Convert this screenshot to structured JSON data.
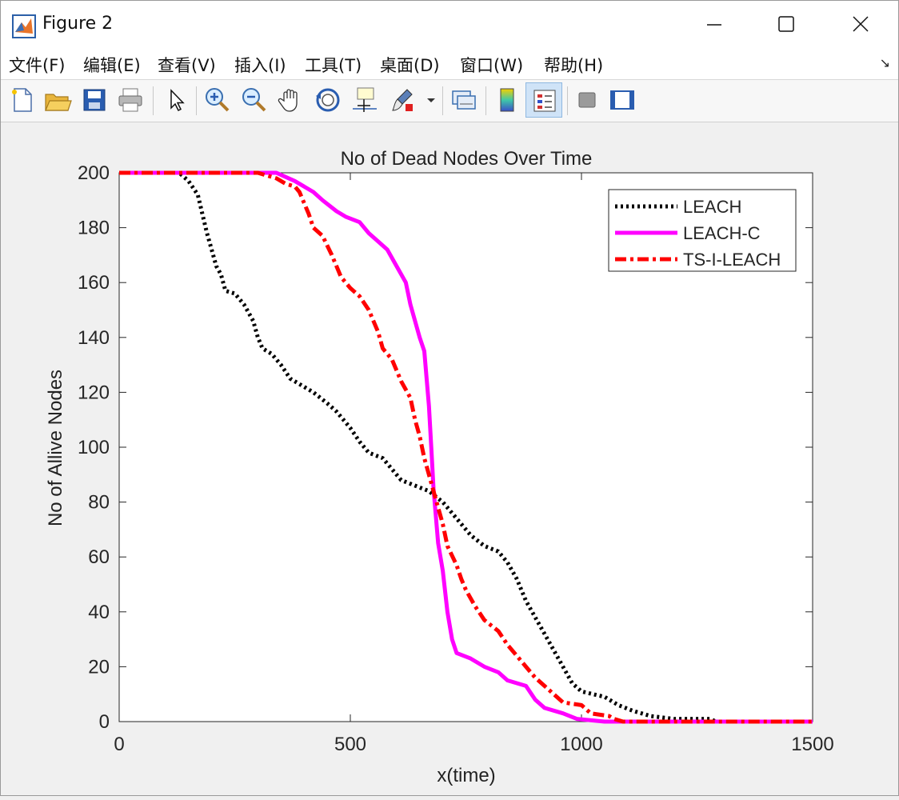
{
  "window": {
    "title": "Figure 2"
  },
  "menu": {
    "items": [
      "文件(F)",
      "编辑(E)",
      "查看(V)",
      "插入(I)",
      "工具(T)",
      "桌面(D)",
      "窗口(W)",
      "帮助(H)"
    ]
  },
  "toolbar": {
    "icons": [
      "new-figure-icon",
      "open-file-icon",
      "save-icon",
      "print-icon",
      "pointer-icon",
      "zoom-in-icon",
      "zoom-out-icon",
      "pan-hand-icon",
      "rotate-3d-icon",
      "data-cursor-icon",
      "brush-icon",
      "link-plot-icon",
      "colorbar-icon",
      "legend-icon",
      "hide-plot-tools-icon",
      "show-plot-tools-icon"
    ]
  },
  "chart_data": {
    "type": "line",
    "title": "No of Dead Nodes Over Time",
    "xlabel": "x(time)",
    "ylabel": "No of Allive Nodes",
    "xlim": [
      0,
      1500
    ],
    "ylim": [
      0,
      200
    ],
    "xticks": [
      0,
      500,
      1000,
      1500
    ],
    "yticks": [
      0,
      20,
      40,
      60,
      80,
      100,
      120,
      140,
      160,
      180,
      200
    ],
    "legend_position": "top-right",
    "series": [
      {
        "name": "LEACH",
        "color": "#000000",
        "style": "dotted",
        "points": [
          [
            0,
            200
          ],
          [
            130,
            200
          ],
          [
            150,
            197
          ],
          [
            170,
            192
          ],
          [
            180,
            185
          ],
          [
            190,
            178
          ],
          [
            200,
            172
          ],
          [
            210,
            166
          ],
          [
            220,
            163
          ],
          [
            230,
            157
          ],
          [
            250,
            156
          ],
          [
            270,
            152
          ],
          [
            290,
            146
          ],
          [
            300,
            140
          ],
          [
            310,
            136
          ],
          [
            330,
            134
          ],
          [
            350,
            130
          ],
          [
            370,
            125
          ],
          [
            390,
            123
          ],
          [
            420,
            120
          ],
          [
            450,
            116
          ],
          [
            470,
            113
          ],
          [
            500,
            107
          ],
          [
            520,
            102
          ],
          [
            540,
            98
          ],
          [
            570,
            96
          ],
          [
            590,
            92
          ],
          [
            610,
            88
          ],
          [
            640,
            86
          ],
          [
            670,
            84
          ],
          [
            700,
            80
          ],
          [
            720,
            76
          ],
          [
            740,
            72
          ],
          [
            760,
            68
          ],
          [
            790,
            64
          ],
          [
            820,
            62
          ],
          [
            840,
            58
          ],
          [
            860,
            52
          ],
          [
            880,
            44
          ],
          [
            900,
            38
          ],
          [
            920,
            32
          ],
          [
            940,
            26
          ],
          [
            960,
            20
          ],
          [
            980,
            14
          ],
          [
            1000,
            11
          ],
          [
            1050,
            9
          ],
          [
            1080,
            6
          ],
          [
            1110,
            4
          ],
          [
            1150,
            2
          ],
          [
            1200,
            1
          ],
          [
            1280,
            1
          ],
          [
            1290,
            0
          ],
          [
            1500,
            0
          ]
        ]
      },
      {
        "name": "LEACH-C",
        "color": "#ff00ff",
        "style": "solid",
        "points": [
          [
            0,
            200
          ],
          [
            340,
            200
          ],
          [
            380,
            197
          ],
          [
            420,
            193
          ],
          [
            440,
            190
          ],
          [
            470,
            186
          ],
          [
            490,
            184
          ],
          [
            520,
            182
          ],
          [
            540,
            178
          ],
          [
            560,
            175
          ],
          [
            580,
            172
          ],
          [
            600,
            166
          ],
          [
            620,
            160
          ],
          [
            630,
            152
          ],
          [
            640,
            146
          ],
          [
            650,
            140
          ],
          [
            660,
            135
          ],
          [
            665,
            125
          ],
          [
            670,
            115
          ],
          [
            675,
            100
          ],
          [
            680,
            85
          ],
          [
            685,
            75
          ],
          [
            690,
            65
          ],
          [
            700,
            55
          ],
          [
            710,
            40
          ],
          [
            720,
            30
          ],
          [
            730,
            25
          ],
          [
            760,
            23
          ],
          [
            790,
            20
          ],
          [
            820,
            18
          ],
          [
            840,
            15
          ],
          [
            880,
            13
          ],
          [
            900,
            8
          ],
          [
            920,
            5
          ],
          [
            960,
            3
          ],
          [
            990,
            1
          ],
          [
            1050,
            0
          ],
          [
            1500,
            0
          ]
        ]
      },
      {
        "name": "TS-I-LEACH",
        "color": "#ff0000",
        "style": "dashdot",
        "points": [
          [
            0,
            200
          ],
          [
            300,
            200
          ],
          [
            340,
            198
          ],
          [
            360,
            196
          ],
          [
            380,
            195
          ],
          [
            390,
            193
          ],
          [
            410,
            185
          ],
          [
            420,
            180
          ],
          [
            440,
            177
          ],
          [
            460,
            170
          ],
          [
            480,
            162
          ],
          [
            500,
            158
          ],
          [
            520,
            155
          ],
          [
            540,
            150
          ],
          [
            560,
            142
          ],
          [
            570,
            136
          ],
          [
            590,
            132
          ],
          [
            610,
            124
          ],
          [
            630,
            118
          ],
          [
            640,
            110
          ],
          [
            650,
            104
          ],
          [
            660,
            96
          ],
          [
            670,
            90
          ],
          [
            680,
            84
          ],
          [
            690,
            78
          ],
          [
            700,
            72
          ],
          [
            710,
            64
          ],
          [
            730,
            57
          ],
          [
            740,
            52
          ],
          [
            750,
            48
          ],
          [
            770,
            42
          ],
          [
            790,
            37
          ],
          [
            820,
            33
          ],
          [
            840,
            28
          ],
          [
            860,
            24
          ],
          [
            880,
            20
          ],
          [
            900,
            16
          ],
          [
            920,
            13
          ],
          [
            940,
            10
          ],
          [
            960,
            7
          ],
          [
            1000,
            6
          ],
          [
            1020,
            3
          ],
          [
            1060,
            2
          ],
          [
            1070,
            1
          ],
          [
            1090,
            0
          ],
          [
            1500,
            0
          ]
        ]
      }
    ]
  }
}
